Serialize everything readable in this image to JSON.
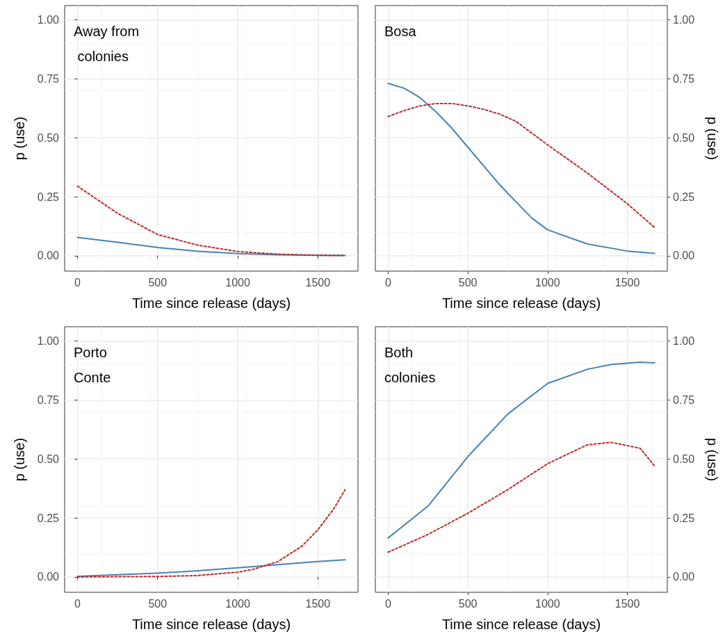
{
  "chart_data": [
    {
      "type": "line",
      "title": "Away from colonies",
      "xlabel": "Time since release (days)",
      "ylabel": "p (use)",
      "xlim": [
        -80,
        1750
      ],
      "xticks": [
        0,
        500,
        1000,
        1500
      ],
      "ylim": [
        -0.065,
        1.06
      ],
      "yticks": [
        {
          "value": 0,
          "label": "0.00"
        },
        {
          "value": 0.25,
          "label": "0.25"
        },
        {
          "value": 0.5,
          "label": "0.50"
        },
        {
          "value": 0.75,
          "label": "0.75"
        },
        {
          "value": 1,
          "label": "1.00"
        }
      ],
      "grid": true,
      "marker": "none",
      "x": [
        0,
        250,
        500,
        750,
        1000,
        1250,
        1500,
        1670
      ],
      "series": [
        {
          "color": "#4682b4",
          "line_style": "solid",
          "values": [
            0.078,
            0.057,
            0.035,
            0.019,
            0.009,
            0.004,
            0.002,
            0.001
          ]
        },
        {
          "color": "#c0282a",
          "line_style": "dotted",
          "values": [
            0.295,
            0.18,
            0.09,
            0.045,
            0.018,
            0.007,
            0.002,
            0.001
          ]
        }
      ]
    },
    {
      "type": "line",
      "title": "Bosa",
      "xlabel": "Time since release (days)",
      "y2label": "p (use)",
      "xlim": [
        -80,
        1750
      ],
      "xticks": [
        0,
        500,
        1000,
        1500
      ],
      "y2lim": [
        -0.065,
        1.06
      ],
      "y2ticks": [
        {
          "value": 0,
          "label": "0.00"
        },
        {
          "value": 0.25,
          "label": "0.25"
        },
        {
          "value": 0.5,
          "label": "0.50"
        },
        {
          "value": 0.75,
          "label": "0.75"
        },
        {
          "value": 1,
          "label": "1.00"
        }
      ],
      "grid": true,
      "marker": "none",
      "x": [
        0,
        100,
        200,
        300,
        400,
        500,
        600,
        700,
        800,
        900,
        1000,
        1250,
        1500,
        1670
      ],
      "series": [
        {
          "color": "#4682b4",
          "line_style": "solid",
          "axis": "y2",
          "values": [
            0.73,
            0.71,
            0.67,
            0.61,
            0.54,
            0.46,
            0.38,
            0.3,
            0.23,
            0.16,
            0.11,
            0.05,
            0.02,
            0.01
          ]
        },
        {
          "color": "#c0282a",
          "line_style": "dotted",
          "axis": "y2",
          "values": [
            0.59,
            0.615,
            0.635,
            0.645,
            0.645,
            0.635,
            0.62,
            0.6,
            0.57,
            0.52,
            0.47,
            0.35,
            0.22,
            0.12
          ]
        }
      ]
    },
    {
      "type": "line",
      "title": "Porto Conte",
      "xlabel": "Time since release (days)",
      "ylabel": "p (use)",
      "xlim": [
        -80,
        1750
      ],
      "xticks": [
        0,
        500,
        1000,
        1500
      ],
      "ylim": [
        -0.065,
        1.06
      ],
      "yticks": [
        {
          "value": 0,
          "label": "0.00"
        },
        {
          "value": 0.25,
          "label": "0.25"
        },
        {
          "value": 0.5,
          "label": "0.50"
        },
        {
          "value": 0.75,
          "label": "0.75"
        },
        {
          "value": 1,
          "label": "1.00"
        }
      ],
      "grid": true,
      "marker": "none",
      "x": [
        0,
        250,
        500,
        750,
        1000,
        1100,
        1250,
        1400,
        1500,
        1600,
        1670
      ],
      "series": [
        {
          "color": "#4682b4",
          "line_style": "solid",
          "values": [
            0.003,
            0.009,
            0.016,
            0.026,
            0.039,
            0.044,
            0.052,
            0.06,
            0.065,
            0.07,
            0.073
          ]
        },
        {
          "color": "#c0282a",
          "line_style": "dotted",
          "values": [
            0.0,
            0.001,
            0.002,
            0.006,
            0.02,
            0.033,
            0.065,
            0.13,
            0.2,
            0.29,
            0.37
          ]
        }
      ]
    },
    {
      "type": "line",
      "title": "Both colonies",
      "xlabel": "Time since release (days)",
      "y2label": "p (use)",
      "xlim": [
        -80,
        1750
      ],
      "xticks": [
        0,
        500,
        1000,
        1500
      ],
      "y2lim": [
        -0.065,
        1.06
      ],
      "y2ticks": [
        {
          "value": 0,
          "label": "0.00"
        },
        {
          "value": 0.25,
          "label": "0.25"
        },
        {
          "value": 0.5,
          "label": "0.50"
        },
        {
          "value": 0.75,
          "label": "0.75"
        },
        {
          "value": 1,
          "label": "1.00"
        }
      ],
      "grid": true,
      "marker": "none",
      "x": [
        0,
        250,
        500,
        750,
        1000,
        1250,
        1400,
        1580,
        1670
      ],
      "series": [
        {
          "color": "#4682b4",
          "line_style": "solid",
          "axis": "y2",
          "values": [
            0.165,
            0.3,
            0.51,
            0.69,
            0.82,
            0.88,
            0.9,
            0.91,
            0.907
          ]
        },
        {
          "color": "#c0282a",
          "line_style": "dotted",
          "axis": "y2",
          "values": [
            0.105,
            0.18,
            0.27,
            0.37,
            0.48,
            0.56,
            0.57,
            0.545,
            0.47
          ]
        }
      ]
    }
  ]
}
